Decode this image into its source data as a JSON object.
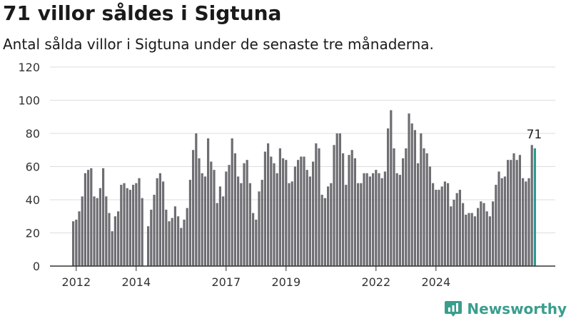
{
  "header": {
    "title": "71 villor såldes i Sigtuna",
    "subtitle": "Antal sålda villor i Sigtuna under de senaste tre månaderna."
  },
  "brand": {
    "name": "Newsworthy",
    "color": "#3a9e8d"
  },
  "colors": {
    "bar": "#6e6d72",
    "highlight": "#2a9d8f",
    "grid": "#dddddd",
    "axis": "#333333"
  },
  "chart_data": {
    "type": "bar",
    "title": "71 villor såldes i Sigtuna",
    "subtitle": "Antal sålda villor i Sigtuna under de senaste tre månaderna.",
    "xlabel": "",
    "ylabel": "",
    "ylim": [
      0,
      120
    ],
    "y_ticks": [
      0,
      20,
      40,
      60,
      80,
      100,
      120
    ],
    "x_tick_labels": [
      "2012",
      "2014",
      "2017",
      "2019",
      "2022",
      "2024"
    ],
    "x_tick_positions": [
      1,
      21,
      51,
      71,
      101,
      121
    ],
    "grid": true,
    "highlight_last": true,
    "last_value_label": "71",
    "values": [
      27,
      28,
      33,
      42,
      56,
      58,
      59,
      42,
      41,
      47,
      59,
      42,
      32,
      21,
      30,
      33,
      49,
      50,
      47,
      46,
      49,
      50,
      53,
      41,
      0,
      24,
      34,
      43,
      53,
      56,
      51,
      34,
      27,
      29,
      36,
      30,
      23,
      28,
      35,
      52,
      70,
      80,
      65,
      56,
      54,
      77,
      63,
      58,
      38,
      48,
      42,
      57,
      61,
      77,
      68,
      54,
      50,
      62,
      64,
      50,
      32,
      28,
      45,
      52,
      69,
      74,
      66,
      62,
      56,
      71,
      65,
      64,
      50,
      51,
      60,
      64,
      66,
      66,
      58,
      54,
      63,
      74,
      71,
      43,
      41,
      48,
      50,
      73,
      80,
      80,
      68,
      49,
      67,
      70,
      65,
      50,
      50,
      56,
      56,
      54,
      56,
      58,
      56,
      53,
      57,
      83,
      94,
      71,
      56,
      55,
      65,
      71,
      92,
      86,
      82,
      62,
      80,
      71,
      68,
      60,
      50,
      46,
      46,
      48,
      51,
      50,
      36,
      40,
      44,
      46,
      38,
      31,
      32,
      32,
      30,
      35,
      39,
      38,
      33,
      30,
      39,
      49,
      57,
      53,
      54,
      64,
      64,
      68,
      64,
      67,
      53,
      51,
      53,
      73,
      71
    ],
    "start_month": "2011-12"
  }
}
